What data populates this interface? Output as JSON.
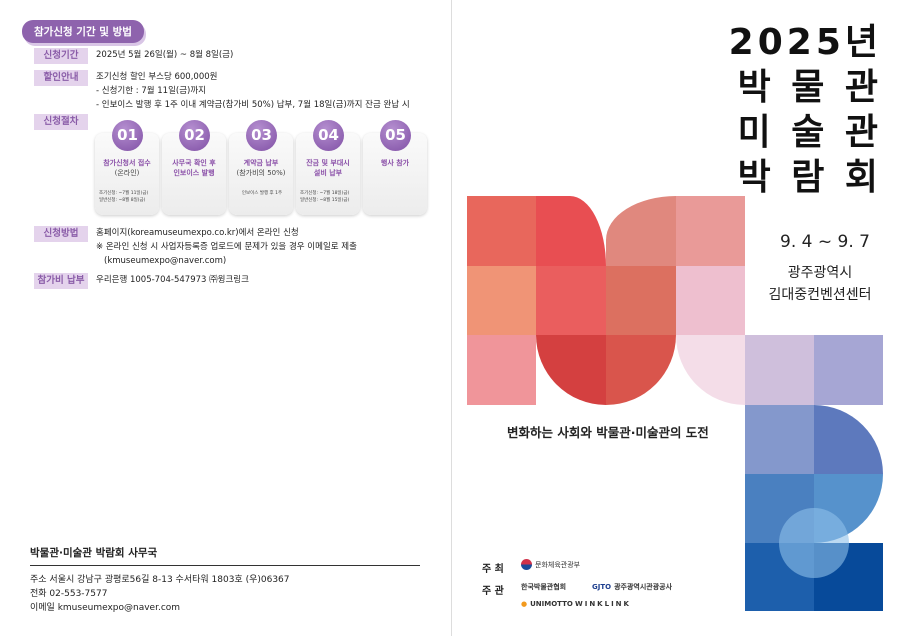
{
  "left": {
    "section_title": "참가신청 기간 및 방법",
    "rows": [
      {
        "label": "신청기간",
        "lines": [
          "2025년 5월 26일(월) ~ 8월 8일(금)"
        ]
      },
      {
        "label": "할인안내",
        "lines": [
          "조기신청 할인 부스당 600,000원",
          "- 신청기한 : 7월 11일(금)까지",
          "- 인보이스 발행 후 1주 이내 계약금(참가비 50%) 납부, 7월 18일(금)까지 잔금 완납 시"
        ]
      },
      {
        "label": "신청절차",
        "lines": []
      },
      {
        "label": "신청방법",
        "lines": [
          "홈페이지(koreamuseumexpo.co.kr)에서 온라인 신청",
          "※ 온라인 신청 시 사업자등록증 업로드에 문제가 있을 경우 이메일로 제출",
          "(kmuseumexpo@naver.com)"
        ]
      },
      {
        "label": "참가비 납부",
        "lines": [
          "우리은행 1005-704-547973 ㈜윙크링크"
        ]
      }
    ],
    "steps": [
      {
        "num": "01",
        "title": "참가신청서 접수",
        "sub": "(온라인)",
        "notes": [
          "조기신청: ~7월 11일(금)",
          "일반신청: ~8월 8일(금)"
        ]
      },
      {
        "num": "02",
        "title": "사무국 확인 후 인보이스 발행",
        "sub": "",
        "notes": []
      },
      {
        "num": "03",
        "title": "계약금 납부",
        "sub": "(참가비의 50%)",
        "notes": [
          "인보이스 발행 후 1주"
        ]
      },
      {
        "num": "04",
        "title": "잔금 및 부대시설비 납부",
        "sub": "",
        "notes": [
          "조기신청: ~7월 18일(금)",
          "일반신청: ~8월 15일(금)"
        ]
      },
      {
        "num": "05",
        "title": "행사 참가",
        "sub": "",
        "notes": []
      }
    ],
    "office": {
      "title": "박물관·미술관 박람회 사무국",
      "address": "주소 서울시 강남구 광평로56길 8-13 수서타워 1803호 (우)06367",
      "phone": "전화 02-553-7577",
      "email": "이메일 kmuseumexpo@naver.com"
    }
  },
  "right": {
    "title_lines": [
      "2025년",
      "박 물 관",
      "미 술 관",
      "박 람 회"
    ],
    "dates": "9. 4 ~ 9. 7",
    "venue_lines": [
      "광주광역시",
      "김대중컨벤션센터"
    ],
    "subtitle": "변화하는 사회와 박물관·미술관의 도전",
    "host_label": "주 최",
    "host_logo": "문화체육관광부",
    "organizer_label": "주 관",
    "organizer_logos": [
      "한국박물관협회",
      "광주광역시관광공사",
      "UNIMOTTO",
      "WINKLINK"
    ]
  },
  "colors": {
    "accent_purple": "#8e63ad",
    "label_bg": "#e4d3ec"
  }
}
